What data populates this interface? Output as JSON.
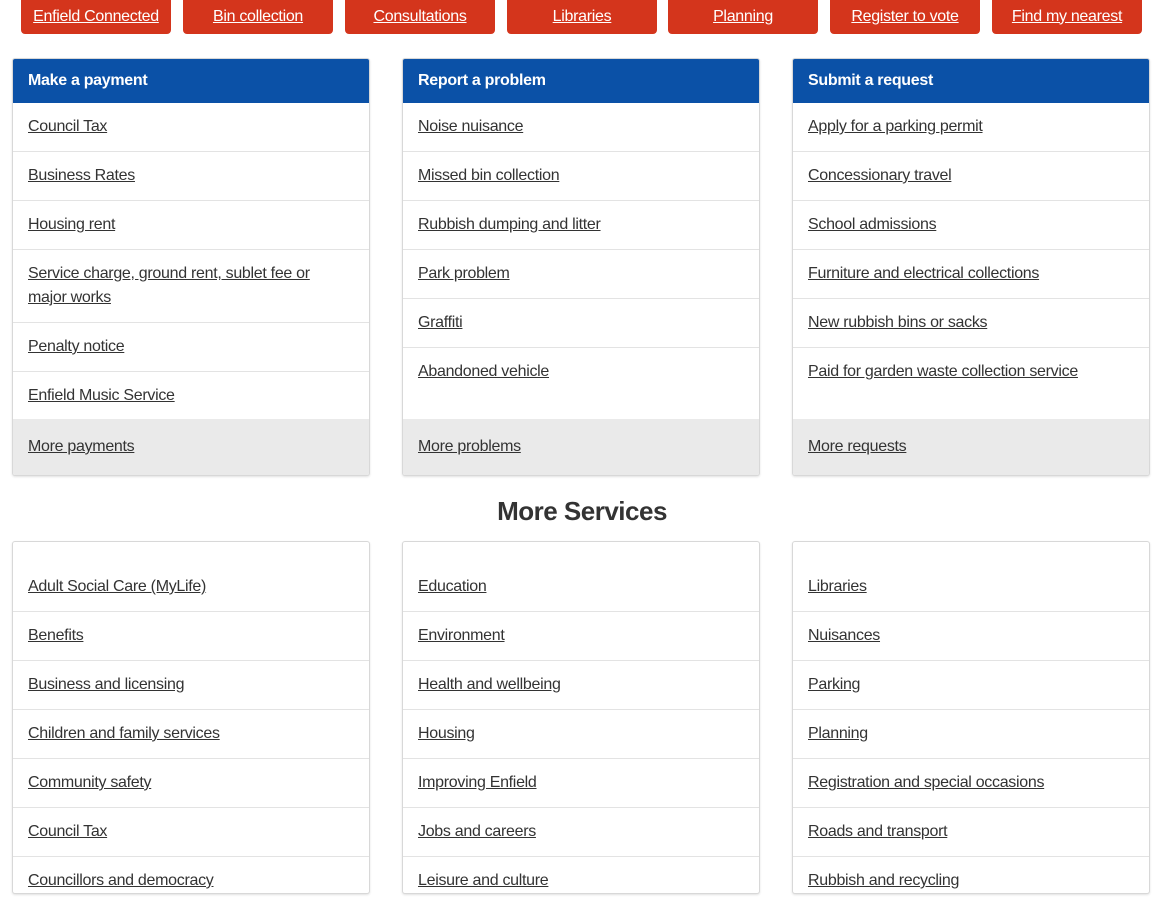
{
  "quick_links": [
    {
      "label": "Enfield Connected"
    },
    {
      "label": "Bin collection"
    },
    {
      "label": "Consultations"
    },
    {
      "label": "Libraries"
    },
    {
      "label": "Planning"
    },
    {
      "label": "Register to vote"
    },
    {
      "label": "Find my nearest"
    }
  ],
  "payment": {
    "title": "Make a payment",
    "items": [
      "Council Tax",
      "Business Rates",
      "Housing rent",
      "Service charge, ground rent, sublet fee or major works",
      "Penalty notice",
      "Enfield Music Service"
    ],
    "more": "More payments"
  },
  "problem": {
    "title": "Report a problem",
    "items": [
      "Noise nuisance",
      "Missed bin collection",
      "Rubbish dumping and litter",
      "Park problem",
      "Graffiti",
      "Abandoned vehicle"
    ],
    "more": "More problems"
  },
  "request": {
    "title": "Submit a request",
    "items": [
      "Apply for a parking permit",
      "Concessionary travel",
      "School admissions",
      "Furniture and electrical collections",
      "New rubbish bins or sacks",
      "Paid for garden waste collection service"
    ],
    "more": "More requests"
  },
  "more_services": {
    "title": "More Services",
    "col1": [
      "Adult Social Care (MyLife)",
      "Benefits",
      "Business and licensing",
      "Children and family services",
      "Community safety",
      "Council Tax",
      "Councillors and democracy"
    ],
    "col2": [
      "Education",
      "Environment",
      "Health and wellbeing",
      "Housing",
      "Improving Enfield",
      "Jobs and careers",
      "Leisure and culture"
    ],
    "col3": [
      "Libraries",
      "Nuisances",
      "Parking",
      "Planning",
      "Registration and special occasions",
      "Roads and transport",
      "Rubbish and recycling"
    ]
  },
  "colors": {
    "accent_red": "#d4351c",
    "header_blue": "#0b51a7",
    "footer_grey": "#eaeaea"
  }
}
